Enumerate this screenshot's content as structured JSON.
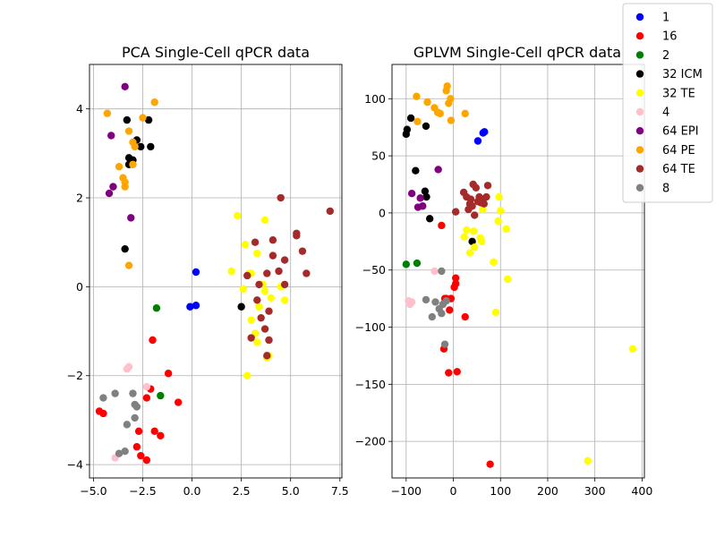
{
  "chart_data": [
    {
      "type": "scatter",
      "title": "PCA Single-Cell qPCR data",
      "xlabel": "",
      "ylabel": "",
      "xlim": [
        -5.2,
        7.6
      ],
      "ylim": [
        -4.3,
        5.0
      ],
      "xticks": [
        -5.0,
        -2.5,
        0.0,
        2.5,
        5.0,
        7.5
      ],
      "xtick_labels": [
        "−5.0",
        "−2.5",
        "0.0",
        "2.5",
        "5.0",
        "7.5"
      ],
      "yticks": [
        -4,
        -2,
        0,
        2,
        4
      ],
      "ytick_labels": [
        "−4",
        "−2",
        "0",
        "2",
        "4"
      ],
      "grid": true,
      "series": [
        {
          "name": "1",
          "color": "#0000ff",
          "points": [
            [
              -0.1,
              -0.45
            ],
            [
              0.2,
              -0.42
            ],
            [
              0.2,
              0.33
            ]
          ]
        },
        {
          "name": "16",
          "color": "#ff0000",
          "points": [
            [
              -4.7,
              -2.8
            ],
            [
              -4.5,
              -2.85
            ],
            [
              -2.8,
              -3.6
            ],
            [
              -2.6,
              -3.8
            ],
            [
              -2.3,
              -3.9
            ],
            [
              -2.3,
              -2.5
            ],
            [
              -2.1,
              -2.3
            ],
            [
              -2.0,
              -1.2
            ],
            [
              -1.9,
              -3.25
            ],
            [
              -1.6,
              -3.35
            ],
            [
              -1.2,
              -1.95
            ],
            [
              -0.7,
              -2.6
            ],
            [
              -2.7,
              -3.25
            ]
          ]
        },
        {
          "name": "2",
          "color": "#008000",
          "points": [
            [
              -1.8,
              -0.48
            ],
            [
              -1.6,
              -2.45
            ]
          ]
        },
        {
          "name": "32 ICM",
          "color": "#000000",
          "points": [
            [
              -3.4,
              0.85
            ],
            [
              -3.3,
              3.75
            ],
            [
              -3.2,
              2.75
            ],
            [
              -3.2,
              2.9
            ],
            [
              -3.0,
              2.85
            ],
            [
              -2.8,
              3.3
            ],
            [
              -2.6,
              3.15
            ],
            [
              -2.2,
              3.75
            ],
            [
              -2.1,
              3.15
            ],
            [
              2.5,
              -0.45
            ]
          ]
        },
        {
          "name": "32 TE",
          "color": "#ffff00",
          "points": [
            [
              2.0,
              0.35
            ],
            [
              2.3,
              1.6
            ],
            [
              2.6,
              -0.05
            ],
            [
              2.7,
              0.95
            ],
            [
              2.8,
              -2.0
            ],
            [
              3.0,
              0.3
            ],
            [
              3.0,
              -0.75
            ],
            [
              3.2,
              -1.05
            ],
            [
              3.3,
              -1.25
            ],
            [
              3.4,
              -0.45
            ],
            [
              3.6,
              0.05
            ],
            [
              3.7,
              1.5
            ],
            [
              3.7,
              -0.1
            ],
            [
              3.8,
              -1.6
            ],
            [
              3.9,
              -1.55
            ],
            [
              4.0,
              -0.25
            ],
            [
              4.5,
              0.0
            ],
            [
              4.7,
              -0.3
            ],
            [
              3.3,
              0.75
            ],
            [
              2.9,
              0.3
            ]
          ]
        },
        {
          "name": "4",
          "color": "#ffc0cb",
          "points": [
            [
              -3.9,
              -3.85
            ],
            [
              -3.3,
              -1.85
            ],
            [
              -3.2,
              -1.8
            ],
            [
              -2.3,
              -2.25
            ]
          ]
        },
        {
          "name": "64 EPI",
          "color": "#800080",
          "points": [
            [
              -4.2,
              2.1
            ],
            [
              -4.1,
              3.4
            ],
            [
              -4.0,
              2.25
            ],
            [
              -3.4,
              4.5
            ],
            [
              -3.1,
              1.55
            ]
          ]
        },
        {
          "name": "64 PE",
          "color": "#ffa500",
          "points": [
            [
              -4.3,
              3.9
            ],
            [
              -3.7,
              2.7
            ],
            [
              -3.5,
              2.45
            ],
            [
              -3.4,
              2.25
            ],
            [
              -3.4,
              2.35
            ],
            [
              -3.2,
              3.5
            ],
            [
              -3.2,
              0.48
            ],
            [
              -3.0,
              3.25
            ],
            [
              -3.0,
              2.75
            ],
            [
              -2.9,
              3.15
            ],
            [
              -2.5,
              3.8
            ],
            [
              -1.9,
              4.15
            ]
          ]
        },
        {
          "name": "64 TE",
          "color": "#a52a2a",
          "points": [
            [
              2.8,
              0.25
            ],
            [
              3.0,
              -1.15
            ],
            [
              3.2,
              1.0
            ],
            [
              3.3,
              -0.3
            ],
            [
              3.4,
              0.05
            ],
            [
              3.5,
              -0.7
            ],
            [
              3.7,
              -0.95
            ],
            [
              3.8,
              0.3
            ],
            [
              3.9,
              -0.55
            ],
            [
              3.9,
              -1.2
            ],
            [
              4.1,
              1.05
            ],
            [
              4.1,
              0.7
            ],
            [
              4.4,
              0.35
            ],
            [
              4.5,
              2.0
            ],
            [
              4.7,
              0.6
            ],
            [
              5.3,
              1.2
            ],
            [
              5.3,
              1.15
            ],
            [
              5.6,
              0.8
            ],
            [
              5.8,
              0.3
            ],
            [
              7.0,
              1.7
            ],
            [
              3.8,
              -1.55
            ],
            [
              4.7,
              0.05
            ]
          ]
        },
        {
          "name": "8",
          "color": "#808080",
          "points": [
            [
              -4.5,
              -2.5
            ],
            [
              -3.9,
              -2.4
            ],
            [
              -3.7,
              -3.75
            ],
            [
              -3.4,
              -3.7
            ],
            [
              -3.3,
              -3.1
            ],
            [
              -3.0,
              -2.4
            ],
            [
              -2.9,
              -2.65
            ],
            [
              -2.8,
              -2.7
            ],
            [
              -2.9,
              -2.95
            ]
          ]
        }
      ]
    },
    {
      "type": "scatter",
      "title": "GPLVM Single-Cell qPCR data",
      "xlabel": "",
      "ylabel": "",
      "xlim": [
        -130,
        405
      ],
      "ylim": [
        -232,
        130
      ],
      "xticks": [
        -100,
        0,
        100,
        200,
        300,
        400
      ],
      "xtick_labels": [
        "−100",
        "0",
        "100",
        "200",
        "300",
        "400"
      ],
      "yticks": [
        -200,
        -150,
        -100,
        -50,
        0,
        50,
        100
      ],
      "ytick_labels": [
        "−200",
        "−150",
        "−100",
        "−50",
        "0",
        "50",
        "100"
      ],
      "grid": true,
      "series": [
        {
          "name": "1",
          "color": "#0000ff",
          "points": [
            [
              52,
              63
            ],
            [
              63,
              70
            ],
            [
              66,
              71
            ]
          ]
        },
        {
          "name": "16",
          "color": "#ff0000",
          "points": [
            [
              -25,
              -11
            ],
            [
              -20,
              -119
            ],
            [
              -18,
              -75
            ],
            [
              -15,
              -75
            ],
            [
              -10,
              -140
            ],
            [
              -8,
              -85
            ],
            [
              -5,
              -75
            ],
            [
              2,
              -65
            ],
            [
              5,
              -57
            ],
            [
              5,
              -62
            ],
            [
              8,
              -139
            ],
            [
              25,
              -91
            ],
            [
              78,
              -220
            ]
          ]
        },
        {
          "name": "2",
          "color": "#008000",
          "points": [
            [
              -100,
              -45
            ],
            [
              -77,
              -44
            ]
          ]
        },
        {
          "name": "32 ICM",
          "color": "#000000",
          "points": [
            [
              -100,
              69
            ],
            [
              -98,
              73
            ],
            [
              -90,
              83
            ],
            [
              -80,
              37
            ],
            [
              -60,
              19
            ],
            [
              -57,
              14
            ],
            [
              -58,
              76
            ],
            [
              -50,
              -5
            ],
            [
              40,
              -25
            ]
          ]
        },
        {
          "name": "32 TE",
          "color": "#ffff00",
          "points": [
            [
              23,
              -21
            ],
            [
              28,
              -15
            ],
            [
              35,
              -35
            ],
            [
              43,
              -16
            ],
            [
              45,
              -30
            ],
            [
              57,
              -22
            ],
            [
              60,
              -25
            ],
            [
              62,
              3
            ],
            [
              85,
              -43
            ],
            [
              90,
              -87
            ],
            [
              95,
              -7
            ],
            [
              97,
              14
            ],
            [
              100,
              2
            ],
            [
              112,
              -14
            ],
            [
              115,
              -58
            ],
            [
              285,
              -217
            ],
            [
              380,
              -119
            ]
          ]
        },
        {
          "name": "4",
          "color": "#ffc0cb",
          "points": [
            [
              -95,
              -77
            ],
            [
              -92,
              -80
            ],
            [
              -88,
              -78
            ],
            [
              -40,
              -51
            ]
          ]
        },
        {
          "name": "64 EPI",
          "color": "#800080",
          "points": [
            [
              -88,
              17
            ],
            [
              -75,
              5
            ],
            [
              -70,
              13
            ],
            [
              -65,
              6
            ],
            [
              -32,
              38
            ]
          ]
        },
        {
          "name": "64 PE",
          "color": "#ffa500",
          "points": [
            [
              -78,
              102
            ],
            [
              -76,
              80
            ],
            [
              -55,
              97
            ],
            [
              -40,
              92
            ],
            [
              -33,
              88
            ],
            [
              -28,
              87
            ],
            [
              -15,
              107
            ],
            [
              -13,
              111
            ],
            [
              -10,
              96
            ],
            [
              -6,
              100
            ],
            [
              -5,
              81
            ],
            [
              25,
              87
            ]
          ]
        },
        {
          "name": "64 TE",
          "color": "#a52a2a",
          "points": [
            [
              5,
              1
            ],
            [
              22,
              18
            ],
            [
              28,
              14
            ],
            [
              32,
              3
            ],
            [
              35,
              8
            ],
            [
              37,
              12
            ],
            [
              40,
              6
            ],
            [
              42,
              25
            ],
            [
              45,
              -2
            ],
            [
              48,
              22
            ],
            [
              52,
              10
            ],
            [
              55,
              14
            ],
            [
              58,
              9
            ],
            [
              63,
              12
            ],
            [
              65,
              8
            ],
            [
              70,
              14
            ],
            [
              73,
              24
            ]
          ]
        },
        {
          "name": "8",
          "color": "#808080",
          "points": [
            [
              -58,
              -76
            ],
            [
              -45,
              -91
            ],
            [
              -38,
              -78
            ],
            [
              -30,
              -84
            ],
            [
              -25,
              -51
            ],
            [
              -22,
              -80
            ],
            [
              -18,
              -115
            ],
            [
              -15,
              -77
            ],
            [
              -25,
              -88
            ]
          ]
        }
      ]
    }
  ],
  "legend": {
    "placement": "top-right",
    "entries": [
      {
        "label": "1",
        "color": "#0000ff"
      },
      {
        "label": "16",
        "color": "#ff0000"
      },
      {
        "label": "2",
        "color": "#008000"
      },
      {
        "label": "32 ICM",
        "color": "#000000"
      },
      {
        "label": "32 TE",
        "color": "#ffff00"
      },
      {
        "label": "4",
        "color": "#ffc0cb"
      },
      {
        "label": "64 EPI",
        "color": "#800080"
      },
      {
        "label": "64 PE",
        "color": "#ffa500"
      },
      {
        "label": "64 TE",
        "color": "#a52a2a"
      },
      {
        "label": "8",
        "color": "#808080"
      }
    ]
  }
}
